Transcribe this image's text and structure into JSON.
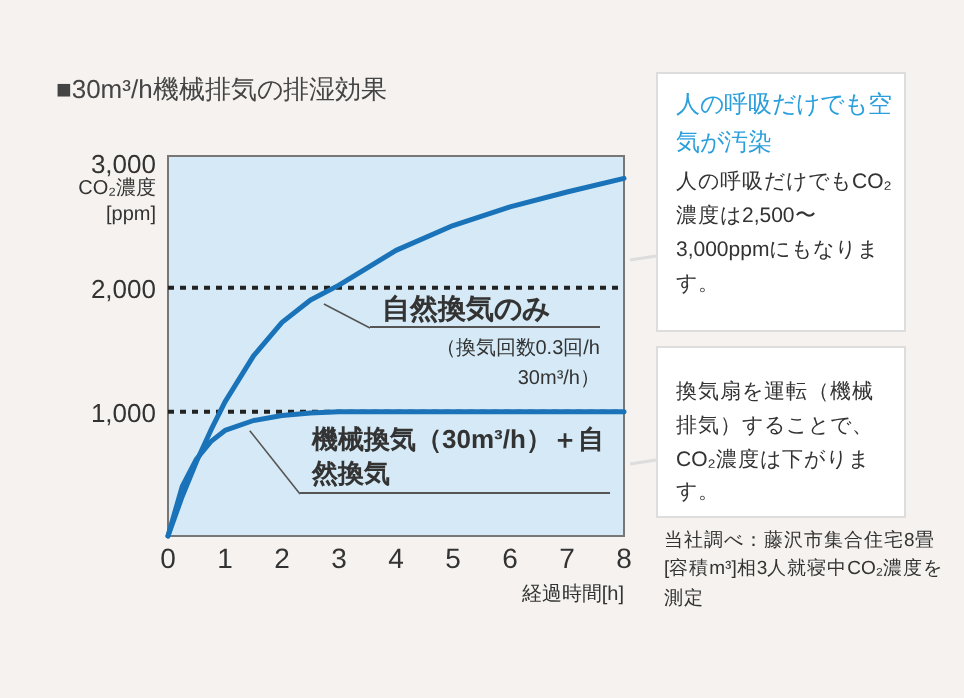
{
  "chart_data": {
    "type": "line",
    "title": "■30m³/h機械排気の排湿効果",
    "xlabel": "経過時間[h]",
    "ylabel": "CO₂濃度 [ppm]",
    "x": [
      0,
      0.25,
      0.5,
      0.75,
      1,
      1.5,
      2,
      2.5,
      3,
      4,
      5,
      6,
      7,
      8
    ],
    "series": [
      {
        "name": "自然換気のみ",
        "color": "#1a73b9",
        "values": [
          0,
          320,
          600,
          850,
          1080,
          1450,
          1720,
          1900,
          2020,
          2300,
          2500,
          2650,
          2770,
          2880
        ]
      },
      {
        "name": "機械換気（30m³/h）＋自然換気",
        "color": "#1a73b9",
        "values": [
          0,
          400,
          620,
          760,
          850,
          930,
          970,
          990,
          1000,
          1000,
          1000,
          1000,
          1000,
          1000
        ]
      }
    ],
    "xlim": [
      0,
      8
    ],
    "ylim": [
      0,
      3060
    ],
    "xticks": [
      0,
      1,
      2,
      3,
      4,
      5,
      6,
      7,
      8
    ],
    "yticks": [
      {
        "value": 1000,
        "label": "1,000"
      },
      {
        "value": 2000,
        "label": "2,000"
      },
      {
        "value": 3000,
        "label": "3,000"
      }
    ],
    "ref_lines": [
      {
        "axis": "y",
        "value": 2000,
        "line_style": "dotted",
        "color": "#222222"
      },
      {
        "axis": "y",
        "value": 1000,
        "line_style": "dotted",
        "color": "#222222"
      }
    ],
    "marker": "none",
    "line_style": "solid",
    "annotations": [
      "（換気回数0.3回/h 30m³/h）",
      "人の呼吸だけでも空気が汚染",
      "人の呼吸だけでもCO₂濃度は2,500〜3,000ppmにもなります。",
      "換気扇を運転（機械排気）することで、CO₂濃度は下がります。",
      "当社調べ：藤沢市集合住宅8畳[容積m³]相3人就寝中CO₂濃度を測定"
    ]
  }
}
